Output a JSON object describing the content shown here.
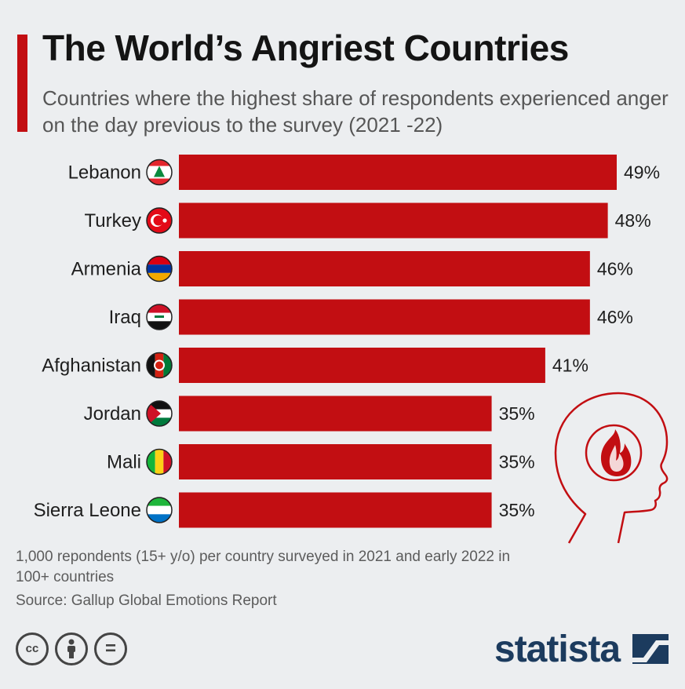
{
  "title": "The World’s Angriest Countries",
  "subtitle": "Countries where the highest share of respondents experienced anger on the day previous to the survey (2021 -22)",
  "chart_data": {
    "type": "bar",
    "orientation": "horizontal",
    "unit": "%",
    "categories": [
      "Lebanon",
      "Turkey",
      "Armenia",
      "Iraq",
      "Afghanistan",
      "Jordan",
      "Mali",
      "Sierra Leone"
    ],
    "values": [
      49,
      48,
      46,
      46,
      41,
      35,
      35,
      35
    ],
    "value_labels": [
      "49%",
      "48%",
      "46%",
      "46%",
      "41%",
      "35%",
      "35%",
      "35%"
    ],
    "xlim": [
      0,
      49
    ],
    "bar_color": "#c20e12",
    "grid": false,
    "legend": "none"
  },
  "footnote": "1,000 repondents (15+ y/o) per country surveyed in 2021 and early 2022 in 100+ countries",
  "source": "Source: Gallup Global Emotions Report",
  "license_icons": [
    "cc-icon",
    "attribution-icon",
    "no-derivatives-icon"
  ],
  "license_text": {
    "cc": "cc",
    "equals": "="
  },
  "brand": "statista",
  "colors": {
    "accent": "#c20e12",
    "background": "#eceef0",
    "title": "#141414",
    "brand": "#1c3b5e"
  }
}
